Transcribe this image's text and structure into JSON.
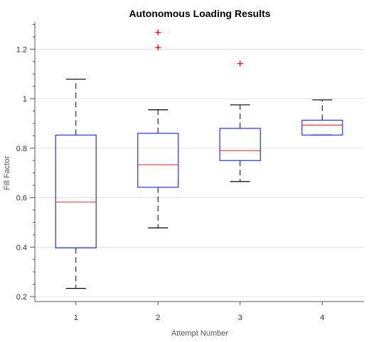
{
  "chart_data": {
    "type": "box",
    "title": "Autonomous Loading Results",
    "xlabel": "Attempt Number",
    "ylabel": "Fill Factor",
    "categories": [
      "1",
      "2",
      "3",
      "4"
    ],
    "ylim": [
      0.18,
      1.31
    ],
    "yticks": [
      0.2,
      0.4,
      0.6,
      0.8,
      1,
      1.2
    ],
    "ytick_labels": [
      "0.2",
      "0.4",
      "0.6",
      "0.8",
      "1",
      "1.2"
    ],
    "grid": true,
    "boxes": [
      {
        "category": "1",
        "whisker_low": 0.233,
        "q1": 0.397,
        "median": 0.582,
        "q3": 0.853,
        "whisker_high": 1.079,
        "outliers": []
      },
      {
        "category": "2",
        "whisker_low": 0.478,
        "q1": 0.642,
        "median": 0.733,
        "q3": 0.86,
        "whisker_high": 0.955,
        "outliers": [
          1.207,
          1.268
        ]
      },
      {
        "category": "3",
        "whisker_low": 0.665,
        "q1": 0.75,
        "median": 0.79,
        "q3": 0.88,
        "whisker_high": 0.975,
        "outliers": [
          1.142
        ]
      },
      {
        "category": "4",
        "whisker_low": 0.853,
        "q1": 0.853,
        "median": 0.893,
        "q3": 0.913,
        "whisker_high": 0.995,
        "outliers": []
      }
    ],
    "colors": {
      "box": "#2b2bff",
      "median": "#e23a3a",
      "whisker": "#000000",
      "outlier": "#ff0000",
      "grid": "#e0e0e0",
      "axis": "#555555"
    }
  }
}
